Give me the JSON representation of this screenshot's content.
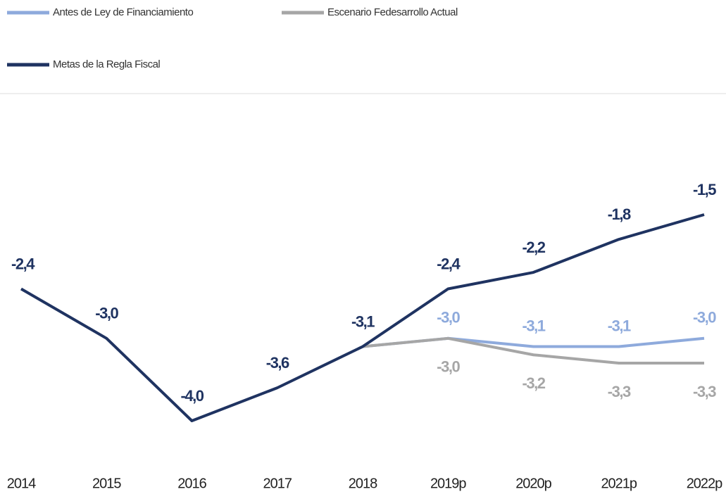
{
  "chart_data": {
    "type": "line",
    "categories": [
      "2014",
      "2015",
      "2016",
      "2017",
      "2018",
      "2019p",
      "2020p",
      "2021p",
      "2022p"
    ],
    "series": [
      {
        "name": "Antes de Ley de Financiamiento",
        "color": "#8eaadc",
        "values": [
          null,
          null,
          null,
          null,
          -3.1,
          -3.0,
          -3.1,
          -3.1,
          -3.0
        ],
        "value_labels": [
          null,
          null,
          null,
          null,
          null,
          "-3,0",
          "-3,1",
          "-3,1",
          "-3,0"
        ]
      },
      {
        "name": "Escenario Fedesarrollo Actual",
        "color": "#a6a6a6",
        "values": [
          null,
          null,
          null,
          null,
          -3.1,
          -3.0,
          -3.2,
          -3.3,
          -3.3
        ],
        "value_labels": [
          null,
          null,
          null,
          null,
          null,
          "-3,0",
          "-3,2",
          "-3,3",
          "-3,3"
        ]
      },
      {
        "name": "Metas de la Regla Fiscal",
        "color": "#1f3361",
        "values": [
          -2.4,
          -3.0,
          -4.0,
          -3.6,
          -3.1,
          -2.4,
          -2.2,
          -1.8,
          -1.5
        ],
        "value_labels": [
          "-2,4",
          "-3,0",
          "-4,0",
          "-3,6",
          "-3,1",
          "-2,4",
          "-2,2",
          "-1,8",
          "-1,5"
        ]
      }
    ],
    "legend": "top"
  }
}
